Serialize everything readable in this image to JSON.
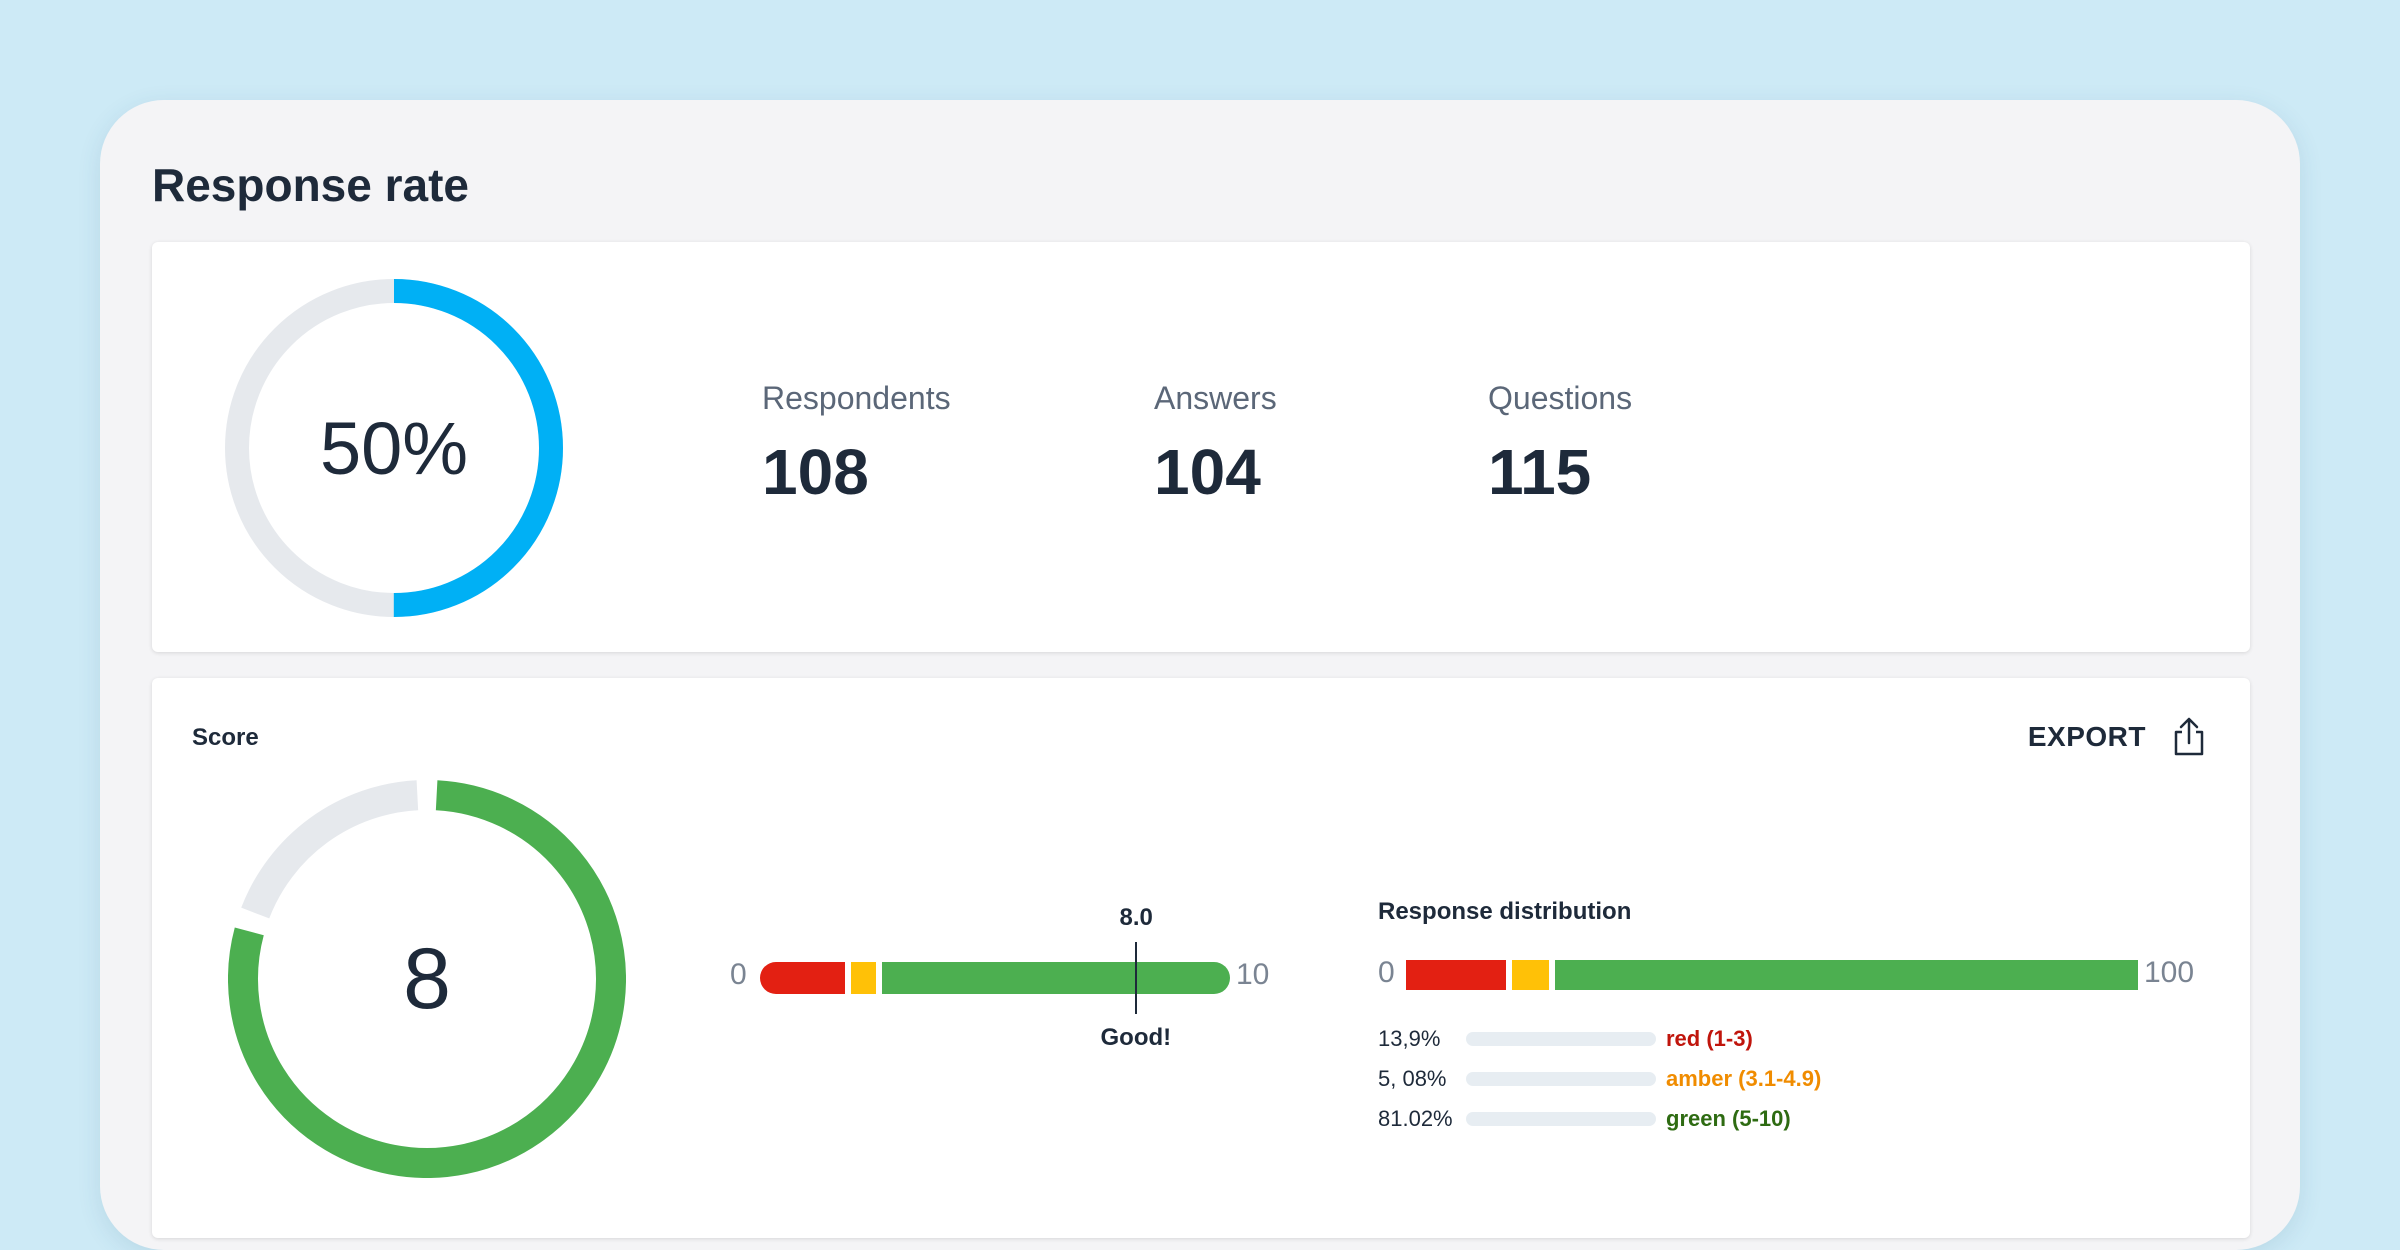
{
  "title": "Response rate",
  "response_rate": {
    "percent_label": "50%",
    "percent_value": 50,
    "ring_color": "#00b0f5",
    "track_color": "#e6e9ed"
  },
  "stats": [
    {
      "label": "Respondents",
      "value": "108"
    },
    {
      "label": "Answers",
      "value": "104"
    },
    {
      "label": "Questions",
      "value": "115"
    }
  ],
  "score": {
    "title": "Score",
    "export_label": "EXPORT",
    "export_icon": "share-upload-icon",
    "value_label": "8",
    "value": 8,
    "max": 10,
    "ring_color": "#4caf50",
    "track_color": "#e6e9ed",
    "gauge": {
      "min_label": "0",
      "max_label": "10",
      "marker_label": "8.0",
      "marker_value": 8.0,
      "caption": "Good!"
    }
  },
  "distribution": {
    "title": "Response distribution",
    "min_label": "0",
    "max_label": "100",
    "rows": [
      {
        "percent_label": "13,9%",
        "name": "red (1-3)",
        "color": "#e32012",
        "text_color": "#c0150c"
      },
      {
        "percent_label": "5, 08%",
        "name": "amber (3.1-4.9)",
        "color": "#ffc107",
        "text_color": "#f08c00"
      },
      {
        "percent_label": "81.02%",
        "name": "green (5-10)",
        "color": "#4caf50",
        "text_color": "#2e6b12"
      }
    ]
  }
}
